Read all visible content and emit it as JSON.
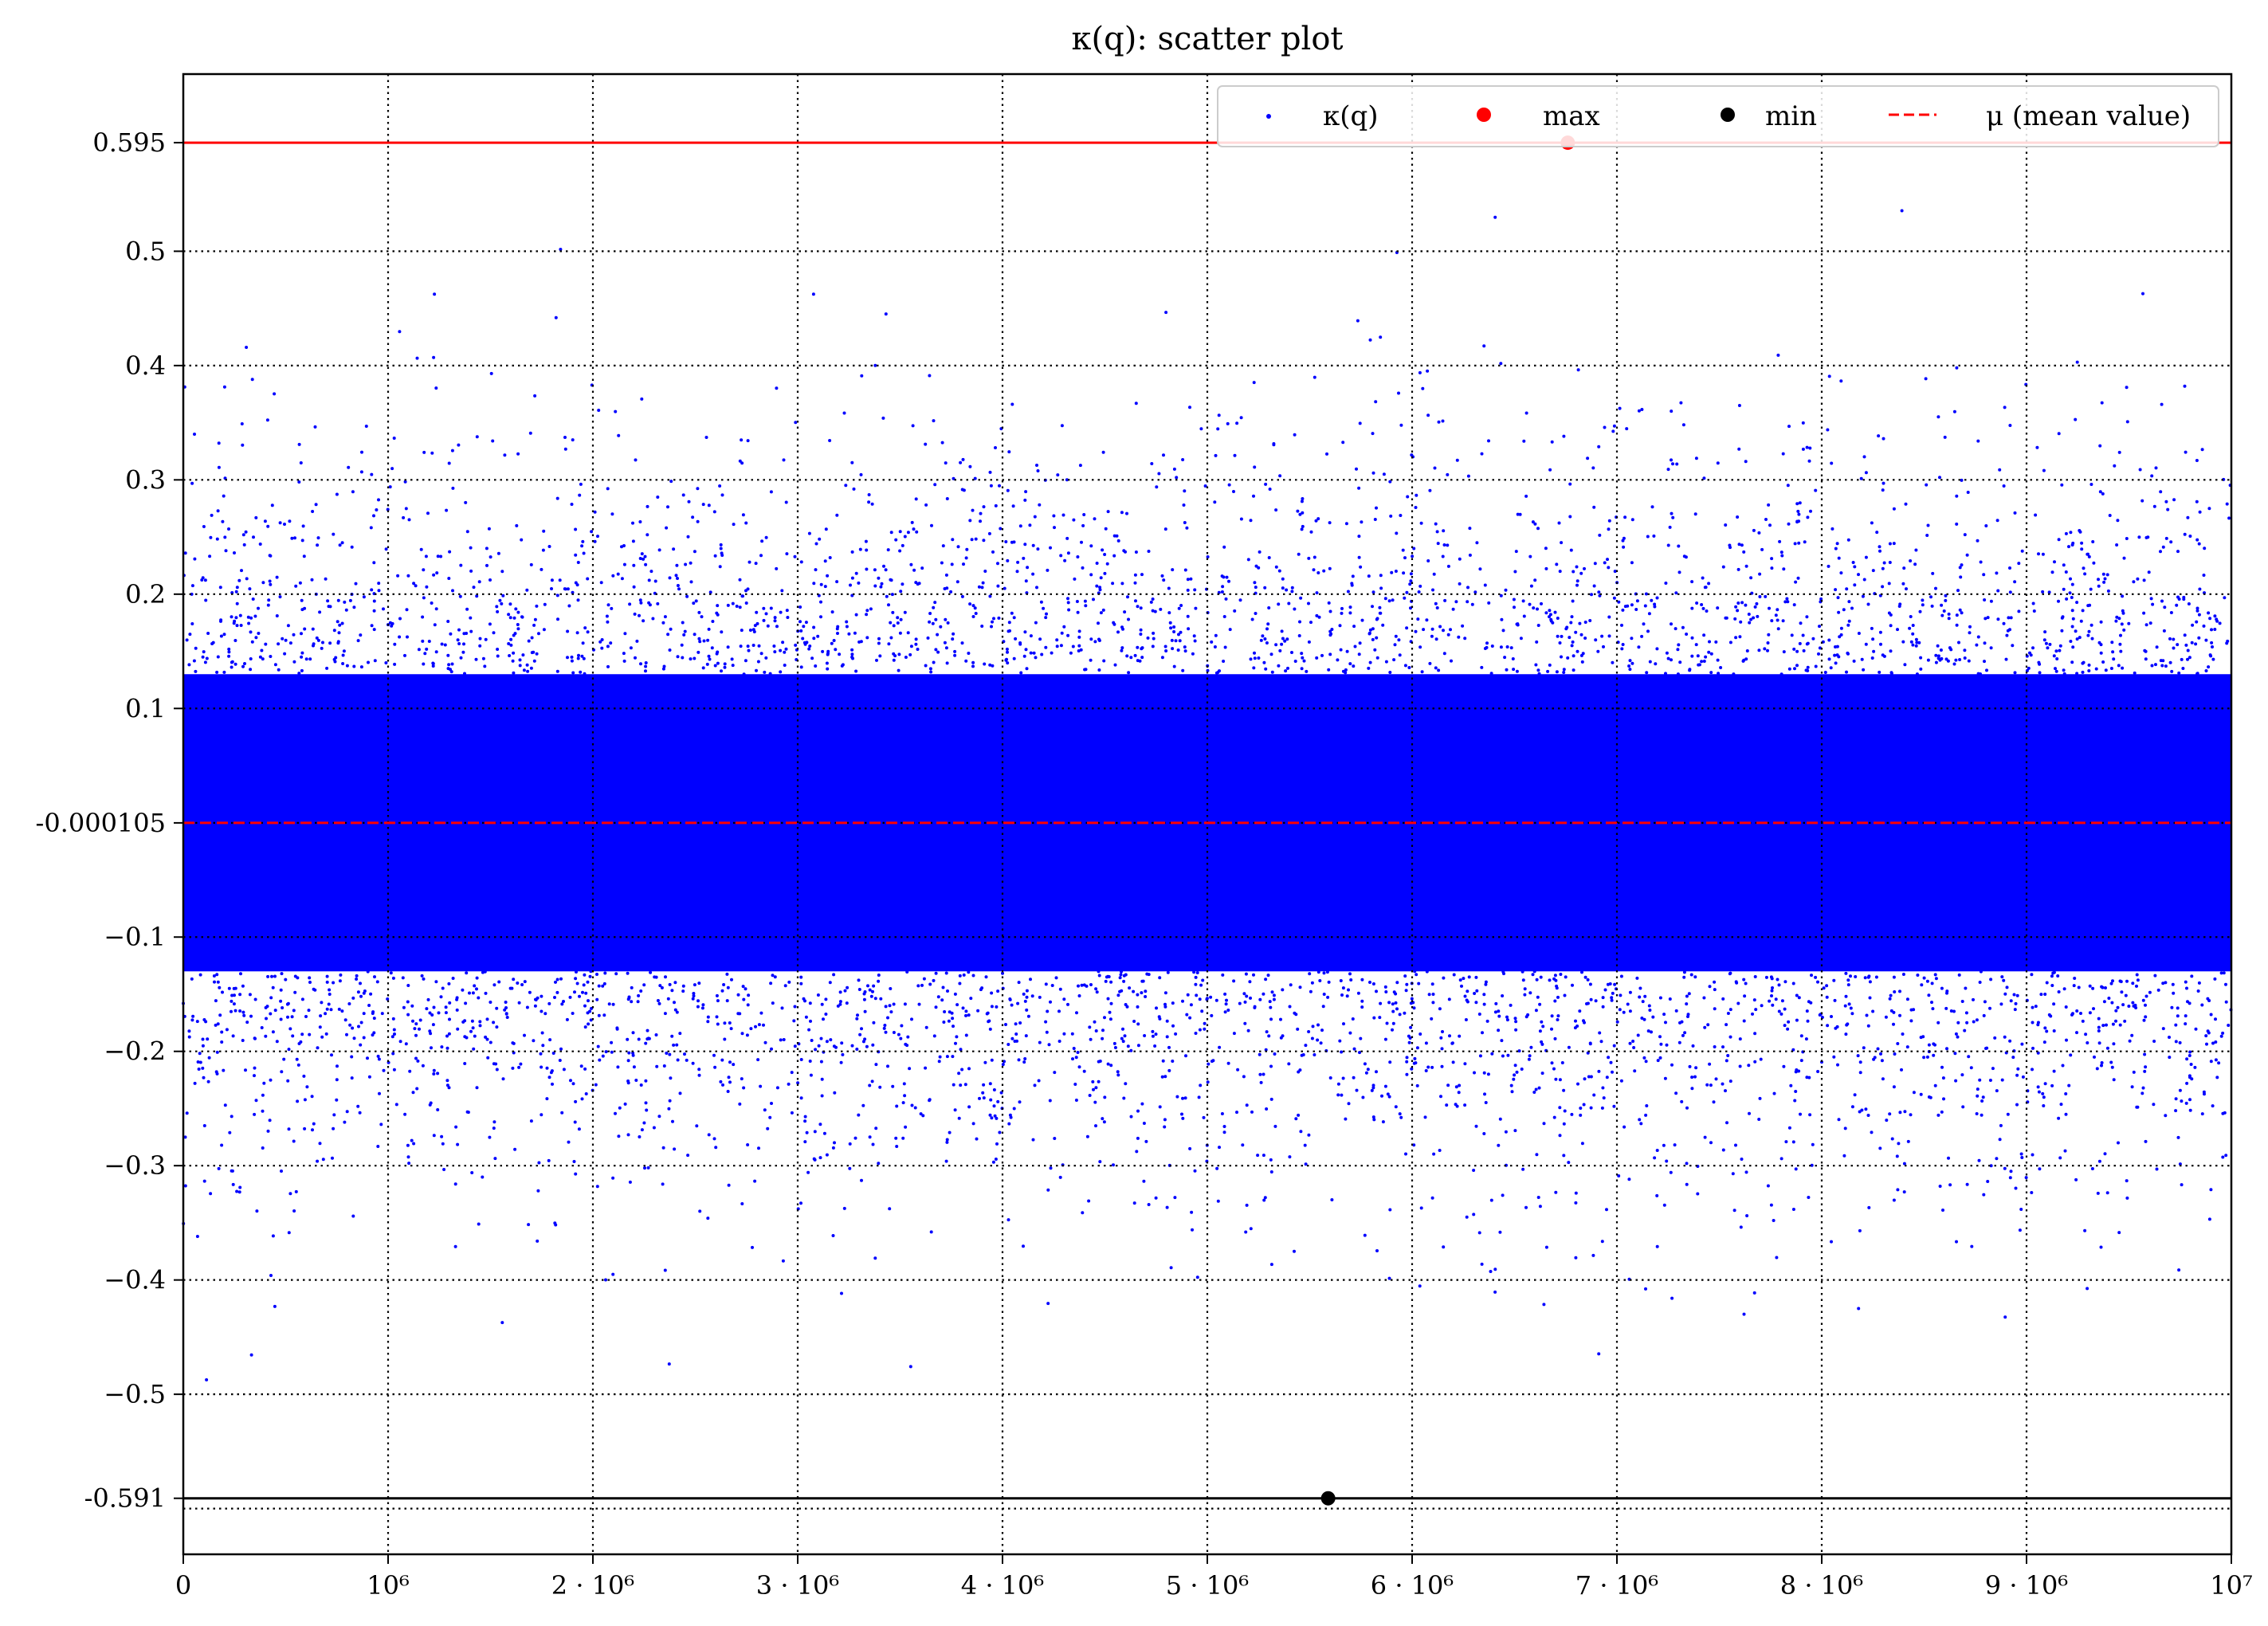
{
  "chart_data": {
    "type": "scatter",
    "title": "κ(q): scatter plot",
    "xlabel": "",
    "ylabel": "",
    "xlim": [
      0,
      10000000
    ],
    "ylim": [
      -0.64,
      0.655
    ],
    "x_ticks": [
      {
        "value": 0,
        "label": "0"
      },
      {
        "value": 1000000,
        "label": "10⁶"
      },
      {
        "value": 2000000,
        "label": "2 · 10⁶"
      },
      {
        "value": 3000000,
        "label": "3 · 10⁶"
      },
      {
        "value": 4000000,
        "label": "4 · 10⁶"
      },
      {
        "value": 5000000,
        "label": "5 · 10⁶"
      },
      {
        "value": 6000000,
        "label": "6 · 10⁶"
      },
      {
        "value": 7000000,
        "label": "7 · 10⁶"
      },
      {
        "value": 8000000,
        "label": "8 · 10⁶"
      },
      {
        "value": 9000000,
        "label": "9 · 10⁶"
      },
      {
        "value": 10000000,
        "label": "10⁷"
      }
    ],
    "y_ticks": [
      {
        "value": 0.595,
        "label": "0.595"
      },
      {
        "value": 0.5,
        "label": "0.5"
      },
      {
        "value": 0.4,
        "label": "0.4"
      },
      {
        "value": 0.3,
        "label": "0.3"
      },
      {
        "value": 0.2,
        "label": "0.2"
      },
      {
        "value": 0.1,
        "label": "0.1"
      },
      {
        "value": -0.000105,
        "label": "-0.000105"
      },
      {
        "value": -0.1,
        "label": "−0.1"
      },
      {
        "value": -0.2,
        "label": "−0.2"
      },
      {
        "value": -0.3,
        "label": "−0.3"
      },
      {
        "value": -0.4,
        "label": "−0.4"
      },
      {
        "value": -0.5,
        "label": "−0.5"
      },
      {
        "value": -0.591,
        "label": "-0.591"
      }
    ],
    "grid": true,
    "extra_grid_y": [
      -0.6
    ],
    "legend_position": "top-right",
    "legend": [
      {
        "label": "κ(q)",
        "marker": "dot-small",
        "color": "#0000ff"
      },
      {
        "label": "max",
        "marker": "dot",
        "color": "#ff0000"
      },
      {
        "label": "min",
        "marker": "dot",
        "color": "#000000"
      },
      {
        "label": "μ (mean value)",
        "marker": "dashed-line",
        "color": "#ff0000"
      }
    ],
    "series": [
      {
        "kind": "scatter-cloud",
        "color": "#0000ff",
        "dense_band": [
          -0.13,
          0.13
        ],
        "sparse_range": [
          -0.55,
          0.58
        ],
        "std_dev": 0.14
      }
    ],
    "max_point": {
      "x": 6760000,
      "y": 0.595,
      "color": "#ff0000"
    },
    "min_point": {
      "x": 5590000,
      "y": -0.591,
      "color": "#000000"
    },
    "reference_lines": [
      {
        "name": "max",
        "y": 0.595,
        "color": "#ff0000",
        "style": "solid"
      },
      {
        "name": "min",
        "y": -0.591,
        "color": "#000000",
        "style": "solid"
      },
      {
        "name": "mean",
        "y": -0.000105,
        "color": "#ff0000",
        "style": "dashed"
      }
    ]
  }
}
